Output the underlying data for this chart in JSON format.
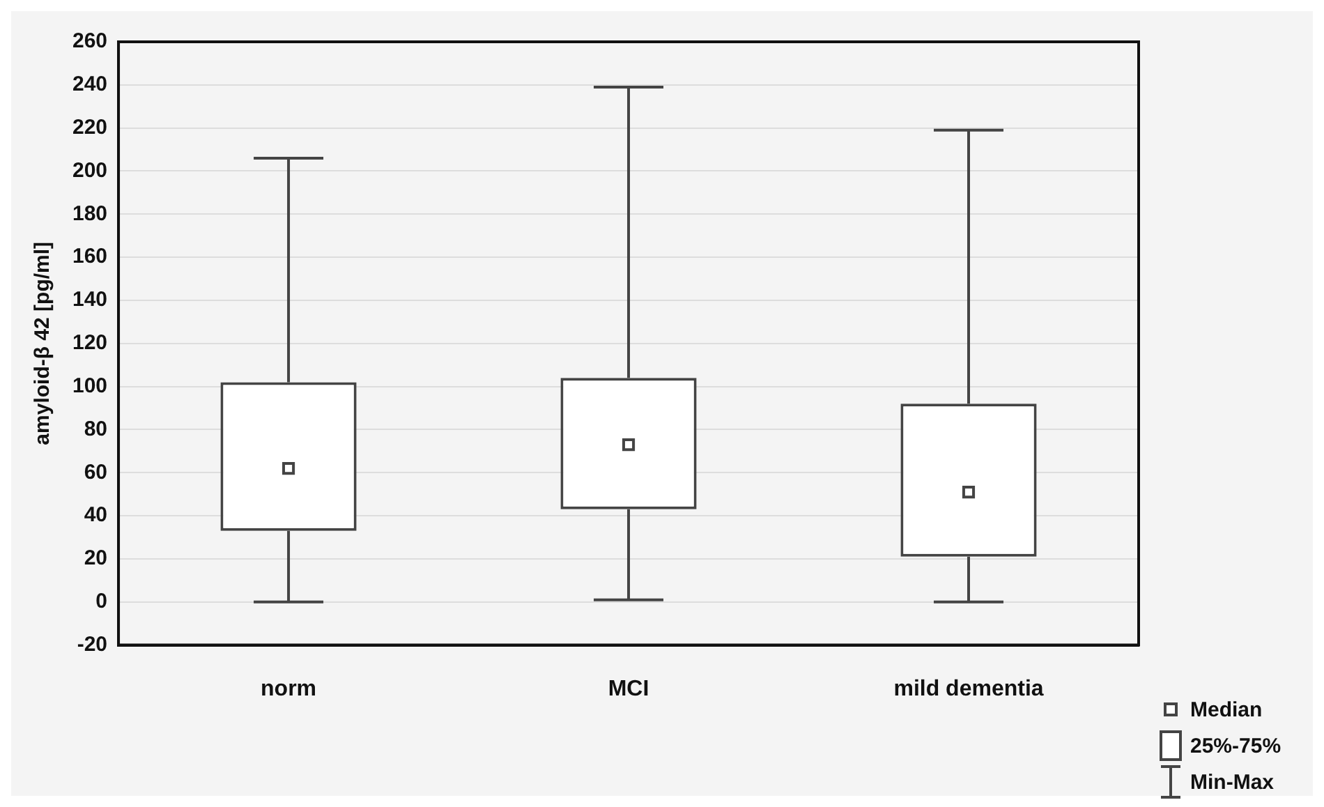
{
  "chart_data": {
    "type": "box",
    "ylabel": "amyloid-β 42 [pg/ml]",
    "categories": [
      "norm",
      "MCI",
      "mild dementia"
    ],
    "boxes": [
      {
        "low": 0,
        "q1": 33,
        "median": 62,
        "q3": 102,
        "high": 206
      },
      {
        "low": 1,
        "q1": 43,
        "median": 73,
        "q3": 104,
        "high": 239
      },
      {
        "low": 0,
        "q1": 21,
        "median": 51,
        "q3": 92,
        "high": 219
      }
    ],
    "ylim": [
      -20,
      260
    ],
    "yticks": [
      -20,
      0,
      20,
      40,
      60,
      80,
      100,
      120,
      140,
      160,
      180,
      200,
      220,
      240,
      260
    ],
    "grid": "y",
    "annotations": [
      "Median",
      "25%-75%",
      "Min-Max"
    ]
  }
}
